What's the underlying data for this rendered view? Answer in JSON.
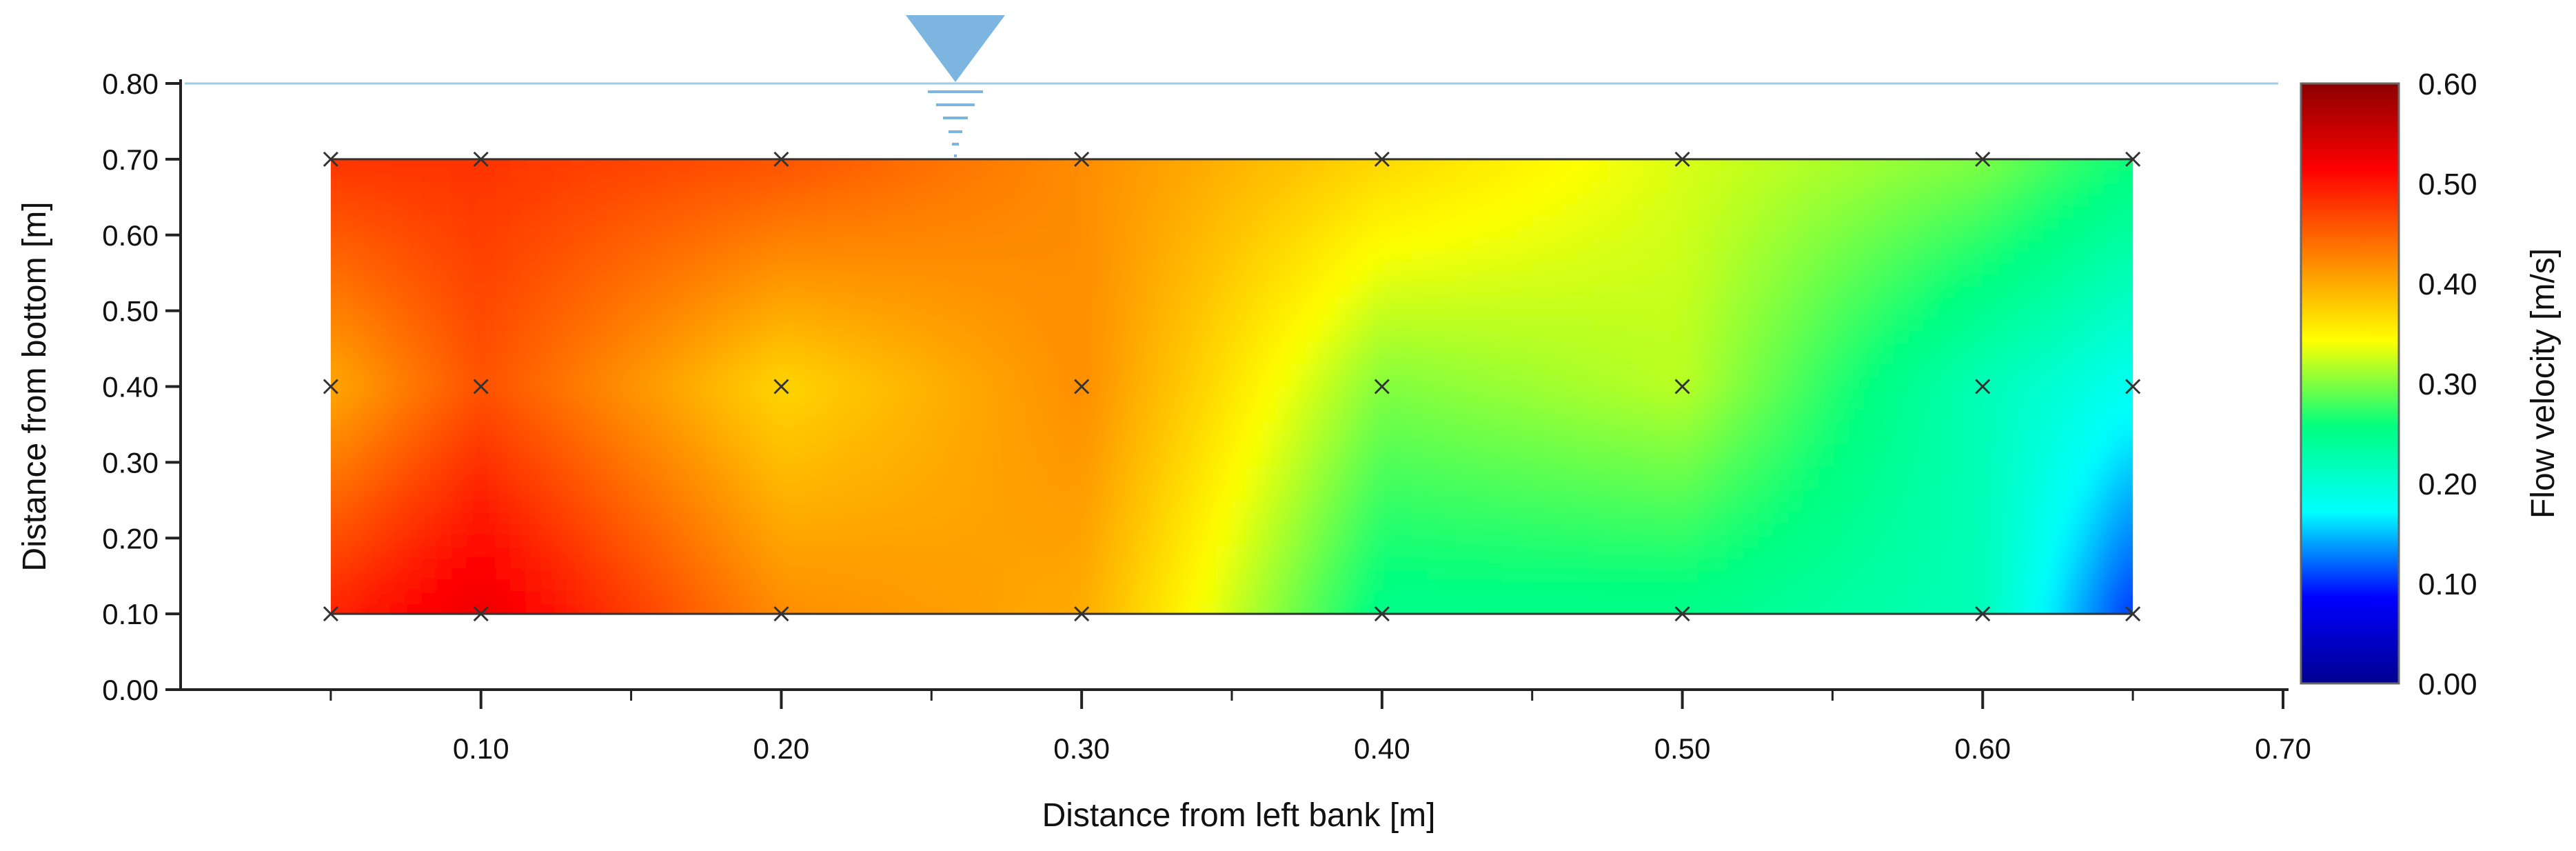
{
  "chart_data": {
    "type": "heatmap",
    "xlabel": "Distance from left bank [m]",
    "ylabel": "Distance from bottom [m]",
    "xlim": [
      0.0,
      0.7
    ],
    "ylim": [
      0.0,
      0.8
    ],
    "x_ticks": [
      "0.10",
      "0.20",
      "0.30",
      "0.40",
      "0.50",
      "0.60",
      "0.70"
    ],
    "y_ticks": [
      "0.00",
      "0.10",
      "0.20",
      "0.30",
      "0.40",
      "0.50",
      "0.60",
      "0.70",
      "0.80"
    ],
    "water_surface_y": 0.8,
    "measurement_x": [
      0.05,
      0.1,
      0.2,
      0.3,
      0.4,
      0.5,
      0.6,
      0.65
    ],
    "measurement_y": [
      0.1,
      0.4,
      0.7
    ],
    "values": [
      [
        0.49,
        0.53,
        0.42,
        0.4,
        0.25,
        0.25,
        0.22,
        0.1
      ],
      [
        0.4,
        0.46,
        0.37,
        0.42,
        0.3,
        0.32,
        0.22,
        0.18
      ],
      [
        0.48,
        0.48,
        0.46,
        0.42,
        0.37,
        0.33,
        0.3,
        0.26
      ]
    ],
    "colorbar": {
      "label": "Flow velocity [m/s]",
      "range": [
        0.0,
        0.6
      ],
      "ticks": [
        "0.00",
        "0.10",
        "0.20",
        "0.30",
        "0.40",
        "0.50",
        "0.60"
      ],
      "colors": [
        "#00008f",
        "#0000ff",
        "#00ffff",
        "#00ff80",
        "#ffff00",
        "#ff8000",
        "#ff0000",
        "#8b0000"
      ]
    },
    "grid": false
  }
}
